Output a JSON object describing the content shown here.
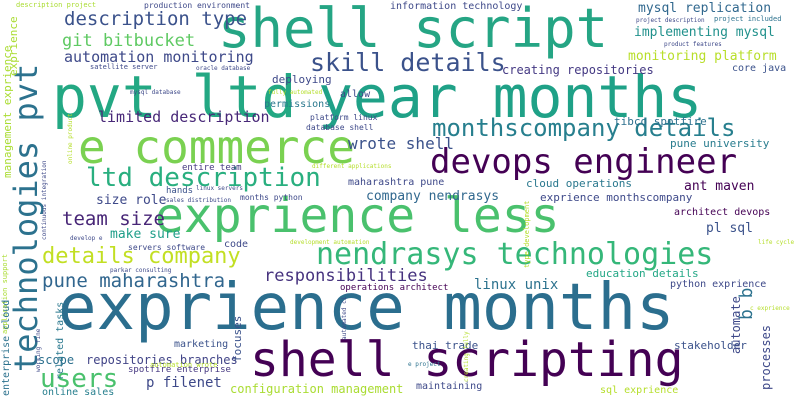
{
  "words": [
    {
      "id": "exprience-months",
      "text": "exprience months",
      "color": "#2b6e8e"
    },
    {
      "id": "exprience-less",
      "text": "exprience less",
      "color": "#4ac16d"
    },
    {
      "id": "pvt-ltd",
      "text": "pvt ltd",
      "color": "#23a883"
    },
    {
      "id": "year-months",
      "text": "year months",
      "color": "#1fa187"
    },
    {
      "id": "shell-script",
      "text": "shell script",
      "color": "#25a584"
    },
    {
      "id": "shell-scripting",
      "text": "shell scripting",
      "color": "#440154"
    },
    {
      "id": "e-commerce",
      "text": "e commerce",
      "color": "#7ad151"
    },
    {
      "id": "devops-engineer",
      "text": "devops engineer",
      "color": "#440154"
    },
    {
      "id": "nendrasys-technologies",
      "text": "nendrasys technologies",
      "color": "#35b779"
    },
    {
      "id": "technologies-pvt",
      "text": "technologies pvt",
      "color": "#2c728e"
    },
    {
      "id": "ltd-description",
      "text": "ltd description",
      "color": "#29af7f"
    },
    {
      "id": "skill-details",
      "text": "skill details",
      "color": "#3b528b"
    },
    {
      "id": "monthscompany-details",
      "text": "monthscompany details",
      "color": "#277f8e"
    },
    {
      "id": "details-company",
      "text": "details company",
      "color": "#c2df23"
    },
    {
      "id": "pune-maharashtra",
      "text": "pune maharashtra",
      "color": "#31668e"
    },
    {
      "id": "users",
      "text": "users",
      "color": "#4ac16d"
    },
    {
      "id": "responsibilities",
      "text": "responsibilities",
      "color": "#46327e"
    },
    {
      "id": "team-size",
      "text": "team size",
      "color": "#482677"
    },
    {
      "id": "description-type",
      "text": "description type",
      "color": "#3b528b"
    },
    {
      "id": "git-bitbucket",
      "text": "git bitbucket",
      "color": "#5ec962"
    },
    {
      "id": "automation-monitoring",
      "text": "automation monitoring",
      "color": "#3e4989"
    },
    {
      "id": "limited-description",
      "text": "limited description",
      "color": "#482878"
    },
    {
      "id": "wrote-shell",
      "text": "wrote shell",
      "color": "#3b528b"
    },
    {
      "id": "mysql-replication",
      "text": "mysql replication",
      "color": "#31688e"
    },
    {
      "id": "implementing-mysql",
      "text": "implementing mysql",
      "color": "#21918c"
    },
    {
      "id": "monitoring-platform",
      "text": "monitoring platform",
      "color": "#b8de29"
    },
    {
      "id": "configuration-management",
      "text": "configuration management",
      "color": "#aadc32"
    },
    {
      "id": "p-filenet",
      "text": "p filenet",
      "color": "#3e4989"
    },
    {
      "id": "linux-unix",
      "text": "linux unix",
      "color": "#2c728e"
    },
    {
      "id": "ant-maven",
      "text": "ant maven",
      "color": "#440154"
    },
    {
      "id": "company-nendrasys",
      "text": "company nendrasys",
      "color": "#31688e"
    },
    {
      "id": "size-role",
      "text": "size role",
      "color": "#3e4989"
    },
    {
      "id": "make-sure",
      "text": "make sure",
      "color": "#1f9e89"
    },
    {
      "id": "creating-repositories",
      "text": "creating repositories",
      "color": "#443983"
    },
    {
      "id": "repositories-branches",
      "text": "repositories branches",
      "color": "#414487"
    },
    {
      "id": "scope",
      "text": "scope",
      "color": "#2d708e"
    },
    {
      "id": "marketing",
      "text": "marketing",
      "color": "#3b528b"
    },
    {
      "id": "focuses",
      "text": "focuses",
      "color": "#3b528b"
    },
    {
      "id": "spotfire-enterprise",
      "text": "spotfire enterprise",
      "color": "#453781"
    },
    {
      "id": "online-sales",
      "text": "online sales",
      "color": "#277f8e"
    },
    {
      "id": "thai-trade",
      "text": "thai trade",
      "color": "#3b528b"
    },
    {
      "id": "maintaining",
      "text": "maintaining",
      "color": "#3e4989"
    },
    {
      "id": "stakeholder",
      "text": "stakeholder",
      "color": "#3b528b"
    },
    {
      "id": "sql-exprience",
      "text": "sql exprience",
      "color": "#b5de2b"
    },
    {
      "id": "education-details",
      "text": "education details",
      "color": "#22a785"
    },
    {
      "id": "python-exprience",
      "text": "python exprience",
      "color": "#3e4989"
    },
    {
      "id": "pl-sql",
      "text": "pl sql",
      "color": "#3b528b"
    },
    {
      "id": "architect-devops",
      "text": "architect devops",
      "color": "#440154"
    },
    {
      "id": "exprience-monthscompany",
      "text": "exprience monthscompany",
      "color": "#3e4989"
    },
    {
      "id": "cloud-operations",
      "text": "cloud operations",
      "color": "#2a788e"
    },
    {
      "id": "pune-university",
      "text": "pune university",
      "color": "#287c8e"
    },
    {
      "id": "tibco-spotfire",
      "text": "tibco spotfire",
      "color": "#2d708e"
    },
    {
      "id": "core-java",
      "text": "core java",
      "color": "#3b528b"
    },
    {
      "id": "maharashtra-pune",
      "text": "maharashtra pune",
      "color": "#3e4989"
    },
    {
      "id": "operations-architect",
      "text": "operations architect",
      "color": "#440154"
    },
    {
      "id": "deploying",
      "text": "deploying",
      "color": "#3e4989"
    },
    {
      "id": "permissions",
      "text": "permissions",
      "color": "#2a788e"
    },
    {
      "id": "allow",
      "text": "allow",
      "color": "#3e4989"
    },
    {
      "id": "entire-team",
      "text": "entire team",
      "color": "#453781"
    },
    {
      "id": "hands",
      "text": "hands",
      "color": "#3b528b"
    },
    {
      "id": "code",
      "text": "code",
      "color": "#3e4989"
    },
    {
      "id": "months-python",
      "text": "months python",
      "color": "#3e4989"
    },
    {
      "id": "servers-software",
      "text": "servers software",
      "color": "#3e4989"
    },
    {
      "id": "related-tasks",
      "text": "related tasks",
      "color": "#2a788e"
    },
    {
      "id": "automate",
      "text": "automate",
      "color": "#3e4989"
    },
    {
      "id": "processes",
      "text": "processes",
      "color": "#3e4989"
    },
    {
      "id": "b-b",
      "text": "b b",
      "color": "#2c728e"
    },
    {
      "id": "information-technology",
      "text": "information technology",
      "color": "#3e4989"
    },
    {
      "id": "production-environment",
      "text": "production environment",
      "color": "#3e4989"
    },
    {
      "id": "description-project",
      "text": "description project",
      "color": "#aadc32"
    },
    {
      "id": "project-description",
      "text": "project description",
      "color": "#3e4989"
    },
    {
      "id": "project-included",
      "text": "project included",
      "color": "#2c728e"
    },
    {
      "id": "product-features",
      "text": "product features",
      "color": "#3e4989"
    },
    {
      "id": "satellite-server",
      "text": "satellite server",
      "color": "#3e4989"
    },
    {
      "id": "oracle-database",
      "text": "oracle database",
      "color": "#3e4989"
    },
    {
      "id": "mysql-database",
      "text": "mysql database",
      "color": "#3e4989"
    },
    {
      "id": "fully-automated",
      "text": "fully automated",
      "color": "#b5de2b"
    },
    {
      "id": "platform-linux",
      "text": "platform linux",
      "color": "#3e4989"
    },
    {
      "id": "database-shell",
      "text": "database shell",
      "color": "#3e4989"
    },
    {
      "id": "linux-servers",
      "text": "linux servers",
      "color": "#3e4989"
    },
    {
      "id": "sales-distribution",
      "text": "sales distribution",
      "color": "#3e4989"
    },
    {
      "id": "different-applications",
      "text": "different applications",
      "color": "#b5de2b"
    },
    {
      "id": "development-automation",
      "text": "development automation",
      "color": "#b5de2b"
    },
    {
      "id": "develop-e",
      "text": "develop e",
      "color": "#3e4989"
    },
    {
      "id": "parkar-consulting",
      "text": "parkar consulting",
      "color": "#3e4989"
    },
    {
      "id": "automation-wrote",
      "text": "automation wrote",
      "color": "#b5de2b"
    },
    {
      "id": "e-project",
      "text": "e project",
      "color": "#2c728e"
    },
    {
      "id": "life-cycle",
      "text": "life cycle",
      "color": "#b5de2b"
    },
    {
      "id": "c-exprience",
      "text": "c exprience",
      "color": "#b5de2b"
    },
    {
      "id": "management-exprience",
      "text": "management exprience",
      "color": "#aadc32"
    },
    {
      "id": "exprience",
      "text": "exprience",
      "color": "#aadc32"
    },
    {
      "id": "application-support",
      "text": "application support",
      "color": "#aadc32"
    },
    {
      "id": "continuous-integration",
      "text": "continuous integration",
      "color": "#3e4989"
    },
    {
      "id": "enterprise-cloud",
      "text": "enterprise cloud",
      "color": "#2c728e"
    },
    {
      "id": "working-fine",
      "text": "working fine",
      "color": "#3e4989"
    },
    {
      "id": "creating-fully",
      "text": "creating fully",
      "color": "#b5de2b"
    },
    {
      "id": "type-development",
      "text": "type development",
      "color": "#b5de2b"
    },
    {
      "id": "automated-ci",
      "text": "automated ci",
      "color": "#3e4989"
    },
    {
      "id": "online-product",
      "text": "online product",
      "color": "#b5de2b"
    }
  ]
}
